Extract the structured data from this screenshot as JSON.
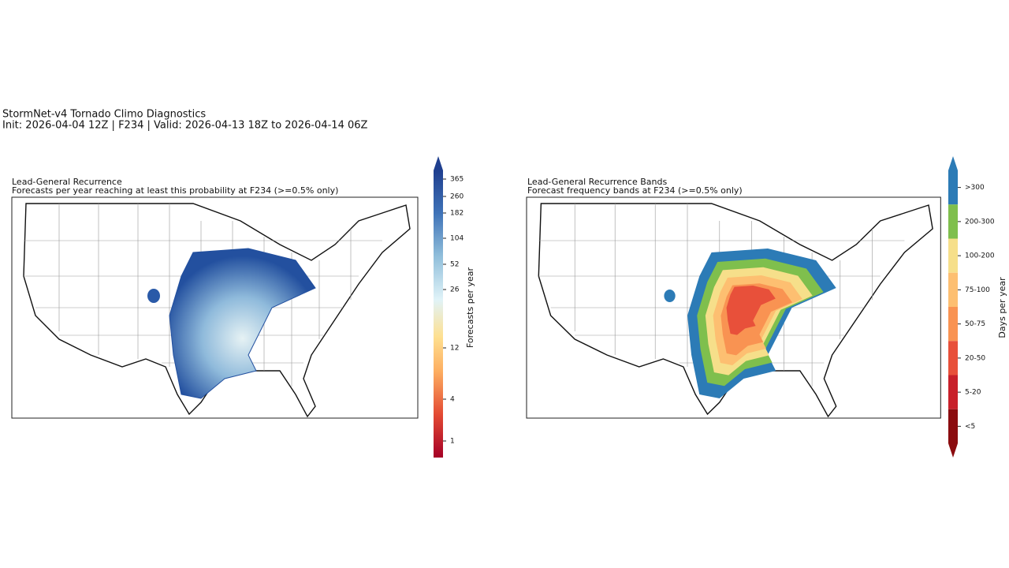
{
  "header": {
    "title": "StormNet-v4 Tornado Climo Diagnostics",
    "subtitle": "Init: 2026-04-04 12Z | F234 | Valid: 2026-04-13 18Z to 2026-04-14 06Z"
  },
  "panels": [
    {
      "title": "Lead-General Recurrence",
      "subtitle": "Forecasts per year reaching at least this probability at F234 (>=0.5% only)",
      "colorbar": {
        "label": "Forecasts per year",
        "ticks": [
          365,
          260,
          182,
          104,
          52,
          26,
          12,
          4,
          1
        ]
      }
    },
    {
      "title": "Lead-General Recurrence Bands",
      "subtitle": "Forecast frequency bands at F234 (>=0.5% only)",
      "colorbar": {
        "label": "Days per year",
        "bands": [
          {
            "label": ">300",
            "color": "#2c7bb6"
          },
          {
            "label": "200-300",
            "color": "#7fbf4d"
          },
          {
            "label": "100-200",
            "color": "#f6df8a"
          },
          {
            "label": "75-100",
            "color": "#fdbf71"
          },
          {
            "label": "50-75",
            "color": "#f99352"
          },
          {
            "label": "20-50",
            "color": "#e8503a"
          },
          {
            "label": "5-20",
            "color": "#c8202a"
          },
          {
            "label": "<5",
            "color": "#8b0c0f"
          }
        ]
      }
    }
  ]
}
